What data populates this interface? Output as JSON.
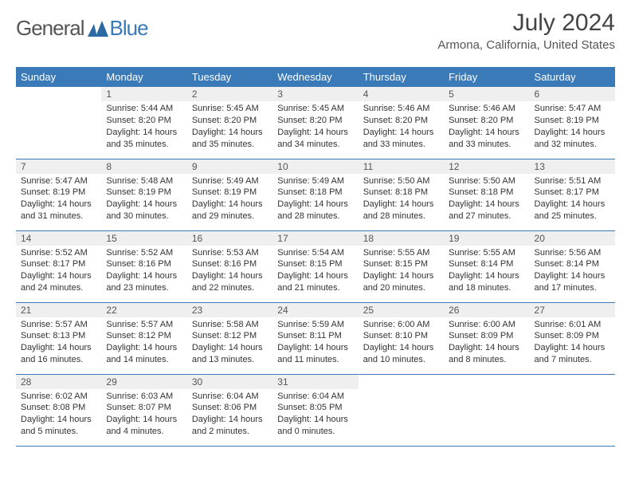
{
  "logo": {
    "general": "General",
    "blue": "Blue",
    "mark_color": "#2d6aa3"
  },
  "title": "July 2024",
  "location": "Armona, California, United States",
  "header_bg": "#3a7ab8",
  "header_text": "#ffffff",
  "daynum_bg": "#efefef",
  "rule_color": "#3a7ab8",
  "body_text": "#333333",
  "days": [
    "Sunday",
    "Monday",
    "Tuesday",
    "Wednesday",
    "Thursday",
    "Friday",
    "Saturday"
  ],
  "weeks": [
    [
      null,
      {
        "n": "1",
        "sr": "5:44 AM",
        "ss": "8:20 PM",
        "dl": "14 hours and 35 minutes."
      },
      {
        "n": "2",
        "sr": "5:45 AM",
        "ss": "8:20 PM",
        "dl": "14 hours and 35 minutes."
      },
      {
        "n": "3",
        "sr": "5:45 AM",
        "ss": "8:20 PM",
        "dl": "14 hours and 34 minutes."
      },
      {
        "n": "4",
        "sr": "5:46 AM",
        "ss": "8:20 PM",
        "dl": "14 hours and 33 minutes."
      },
      {
        "n": "5",
        "sr": "5:46 AM",
        "ss": "8:20 PM",
        "dl": "14 hours and 33 minutes."
      },
      {
        "n": "6",
        "sr": "5:47 AM",
        "ss": "8:19 PM",
        "dl": "14 hours and 32 minutes."
      }
    ],
    [
      {
        "n": "7",
        "sr": "5:47 AM",
        "ss": "8:19 PM",
        "dl": "14 hours and 31 minutes."
      },
      {
        "n": "8",
        "sr": "5:48 AM",
        "ss": "8:19 PM",
        "dl": "14 hours and 30 minutes."
      },
      {
        "n": "9",
        "sr": "5:49 AM",
        "ss": "8:19 PM",
        "dl": "14 hours and 29 minutes."
      },
      {
        "n": "10",
        "sr": "5:49 AM",
        "ss": "8:18 PM",
        "dl": "14 hours and 28 minutes."
      },
      {
        "n": "11",
        "sr": "5:50 AM",
        "ss": "8:18 PM",
        "dl": "14 hours and 28 minutes."
      },
      {
        "n": "12",
        "sr": "5:50 AM",
        "ss": "8:18 PM",
        "dl": "14 hours and 27 minutes."
      },
      {
        "n": "13",
        "sr": "5:51 AM",
        "ss": "8:17 PM",
        "dl": "14 hours and 25 minutes."
      }
    ],
    [
      {
        "n": "14",
        "sr": "5:52 AM",
        "ss": "8:17 PM",
        "dl": "14 hours and 24 minutes."
      },
      {
        "n": "15",
        "sr": "5:52 AM",
        "ss": "8:16 PM",
        "dl": "14 hours and 23 minutes."
      },
      {
        "n": "16",
        "sr": "5:53 AM",
        "ss": "8:16 PM",
        "dl": "14 hours and 22 minutes."
      },
      {
        "n": "17",
        "sr": "5:54 AM",
        "ss": "8:15 PM",
        "dl": "14 hours and 21 minutes."
      },
      {
        "n": "18",
        "sr": "5:55 AM",
        "ss": "8:15 PM",
        "dl": "14 hours and 20 minutes."
      },
      {
        "n": "19",
        "sr": "5:55 AM",
        "ss": "8:14 PM",
        "dl": "14 hours and 18 minutes."
      },
      {
        "n": "20",
        "sr": "5:56 AM",
        "ss": "8:14 PM",
        "dl": "14 hours and 17 minutes."
      }
    ],
    [
      {
        "n": "21",
        "sr": "5:57 AM",
        "ss": "8:13 PM",
        "dl": "14 hours and 16 minutes."
      },
      {
        "n": "22",
        "sr": "5:57 AM",
        "ss": "8:12 PM",
        "dl": "14 hours and 14 minutes."
      },
      {
        "n": "23",
        "sr": "5:58 AM",
        "ss": "8:12 PM",
        "dl": "14 hours and 13 minutes."
      },
      {
        "n": "24",
        "sr": "5:59 AM",
        "ss": "8:11 PM",
        "dl": "14 hours and 11 minutes."
      },
      {
        "n": "25",
        "sr": "6:00 AM",
        "ss": "8:10 PM",
        "dl": "14 hours and 10 minutes."
      },
      {
        "n": "26",
        "sr": "6:00 AM",
        "ss": "8:09 PM",
        "dl": "14 hours and 8 minutes."
      },
      {
        "n": "27",
        "sr": "6:01 AM",
        "ss": "8:09 PM",
        "dl": "14 hours and 7 minutes."
      }
    ],
    [
      {
        "n": "28",
        "sr": "6:02 AM",
        "ss": "8:08 PM",
        "dl": "14 hours and 5 minutes."
      },
      {
        "n": "29",
        "sr": "6:03 AM",
        "ss": "8:07 PM",
        "dl": "14 hours and 4 minutes."
      },
      {
        "n": "30",
        "sr": "6:04 AM",
        "ss": "8:06 PM",
        "dl": "14 hours and 2 minutes."
      },
      {
        "n": "31",
        "sr": "6:04 AM",
        "ss": "8:05 PM",
        "dl": "14 hours and 0 minutes."
      },
      null,
      null,
      null
    ]
  ],
  "labels": {
    "sunrise": "Sunrise:",
    "sunset": "Sunset:",
    "daylight": "Daylight:"
  }
}
